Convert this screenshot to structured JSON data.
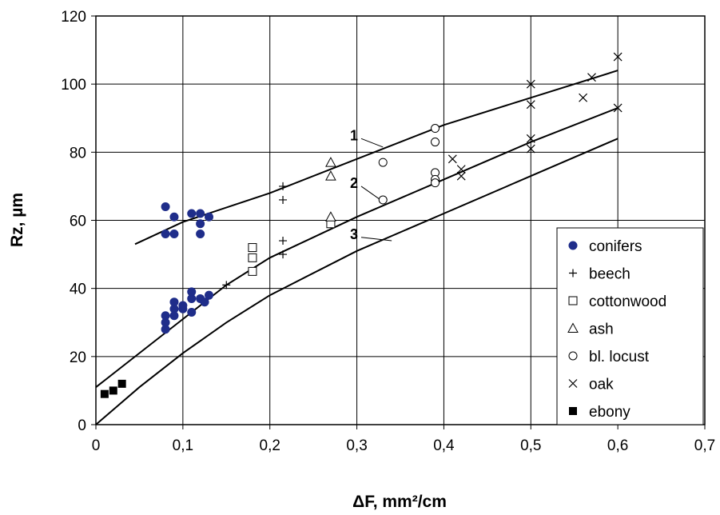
{
  "chart_data": {
    "type": "scatter",
    "xlabel": "ΔF, mm²/cm",
    "ylabel": "Rz, µm",
    "xlim": [
      0,
      0.7
    ],
    "ylim": [
      0,
      120
    ],
    "x_ticks": [
      "0",
      "0,1",
      "0,2",
      "0,3",
      "0,4",
      "0,5",
      "0,6",
      "0,7"
    ],
    "y_ticks": [
      "0",
      "20",
      "40",
      "60",
      "80",
      "100",
      "120"
    ],
    "grid": true,
    "legend_position": "bottom-right",
    "series": [
      {
        "name": "conifers",
        "marker": "filled-circle",
        "color": "#1f2d8a",
        "points": [
          [
            0.08,
            64
          ],
          [
            0.08,
            56
          ],
          [
            0.09,
            61
          ],
          [
            0.09,
            56
          ],
          [
            0.11,
            62
          ],
          [
            0.12,
            62
          ],
          [
            0.12,
            59
          ],
          [
            0.12,
            56
          ],
          [
            0.13,
            61
          ],
          [
            0.08,
            28
          ],
          [
            0.08,
            30
          ],
          [
            0.08,
            32
          ],
          [
            0.09,
            32
          ],
          [
            0.09,
            34
          ],
          [
            0.09,
            36
          ],
          [
            0.1,
            34
          ],
          [
            0.1,
            35
          ],
          [
            0.11,
            37
          ],
          [
            0.11,
            39
          ],
          [
            0.11,
            33
          ],
          [
            0.12,
            37
          ],
          [
            0.125,
            36
          ],
          [
            0.13,
            38
          ]
        ]
      },
      {
        "name": "beech",
        "marker": "plus",
        "color": "#000000",
        "points": [
          [
            0.15,
            41
          ],
          [
            0.215,
            70
          ],
          [
            0.215,
            66
          ],
          [
            0.215,
            54
          ],
          [
            0.215,
            50
          ],
          [
            0.27,
            60
          ]
        ]
      },
      {
        "name": "cottonwood",
        "marker": "open-square",
        "color": "#000000",
        "points": [
          [
            0.18,
            52
          ],
          [
            0.18,
            49
          ],
          [
            0.18,
            45
          ],
          [
            0.27,
            59
          ]
        ]
      },
      {
        "name": "ash",
        "marker": "open-triangle",
        "color": "#000000",
        "points": [
          [
            0.27,
            77
          ],
          [
            0.27,
            73
          ],
          [
            0.27,
            61
          ]
        ]
      },
      {
        "name": "bl. locust",
        "marker": "open-circle",
        "color": "#000000",
        "points": [
          [
            0.33,
            77
          ],
          [
            0.33,
            66
          ],
          [
            0.39,
            87
          ],
          [
            0.39,
            83
          ],
          [
            0.39,
            74
          ],
          [
            0.39,
            72
          ],
          [
            0.39,
            71
          ]
        ]
      },
      {
        "name": "oak",
        "marker": "x",
        "color": "#000000",
        "points": [
          [
            0.41,
            78
          ],
          [
            0.42,
            75
          ],
          [
            0.42,
            73
          ],
          [
            0.5,
            100
          ],
          [
            0.5,
            94
          ],
          [
            0.5,
            84
          ],
          [
            0.5,
            81
          ],
          [
            0.56,
            96
          ],
          [
            0.57,
            102
          ],
          [
            0.6,
            108
          ],
          [
            0.6,
            93
          ]
        ]
      },
      {
        "name": "ebony",
        "marker": "filled-square",
        "color": "#000000",
        "points": [
          [
            0.01,
            9
          ],
          [
            0.02,
            10
          ],
          [
            0.03,
            12
          ]
        ]
      }
    ],
    "curves": [
      {
        "label": "1",
        "points": [
          [
            0.045,
            53
          ],
          [
            0.1,
            59.5
          ],
          [
            0.2,
            68
          ],
          [
            0.3,
            78
          ],
          [
            0.4,
            88
          ],
          [
            0.5,
            96
          ],
          [
            0.6,
            104
          ]
        ]
      },
      {
        "label": "2",
        "points": [
          [
            0.0,
            11
          ],
          [
            0.05,
            21
          ],
          [
            0.1,
            31
          ],
          [
            0.15,
            41
          ],
          [
            0.2,
            49
          ],
          [
            0.3,
            61
          ],
          [
            0.4,
            72
          ],
          [
            0.5,
            83
          ],
          [
            0.6,
            93
          ]
        ]
      },
      {
        "label": "3",
        "points": [
          [
            0.0,
            0
          ],
          [
            0.05,
            11
          ],
          [
            0.1,
            21
          ],
          [
            0.15,
            30
          ],
          [
            0.2,
            38
          ],
          [
            0.3,
            51
          ],
          [
            0.4,
            62
          ],
          [
            0.5,
            73
          ],
          [
            0.6,
            84
          ]
        ]
      }
    ]
  }
}
